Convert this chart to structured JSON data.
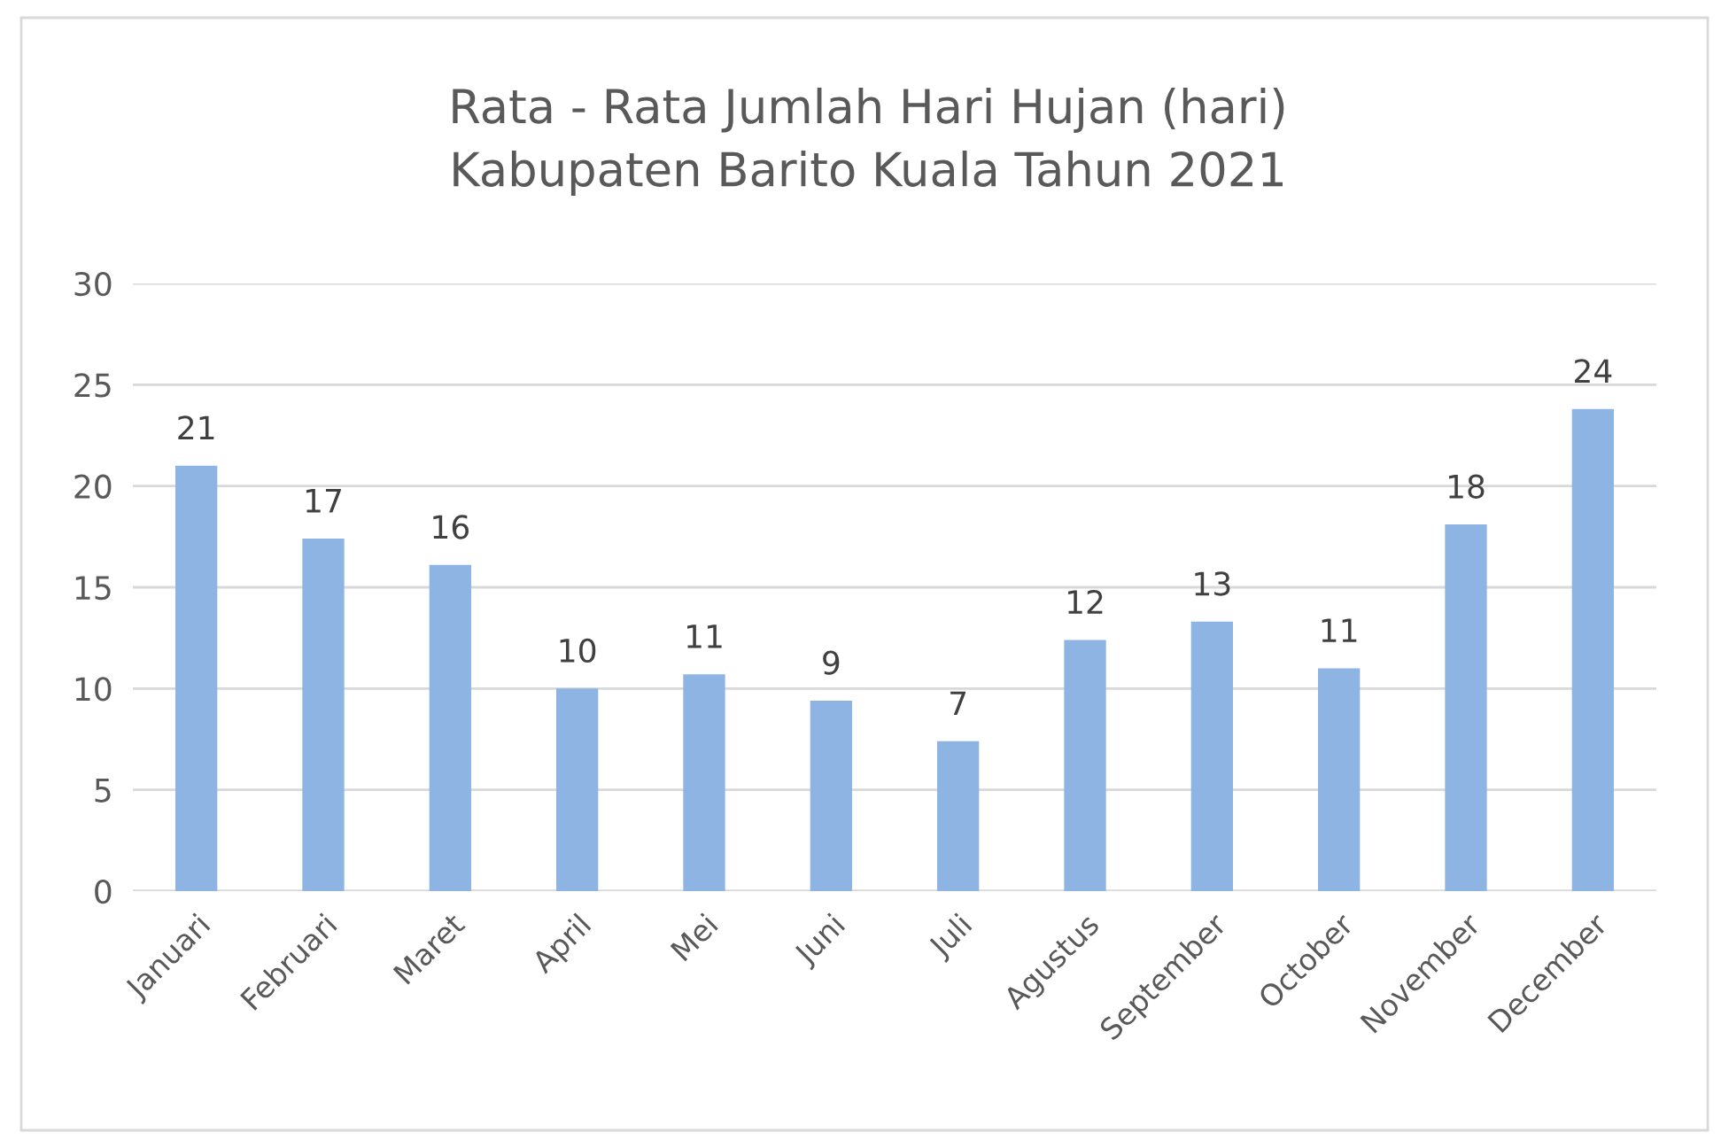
{
  "chart_data": {
    "type": "bar",
    "title": "Rata - Rata Jumlah Hari Hujan (hari)\nKabupaten Barito Kuala Tahun 2021",
    "categories": [
      "Januari",
      "Februari",
      "Maret",
      "April",
      "Mei",
      "Juni",
      "Juli",
      "Agustus",
      "September",
      "October",
      "November",
      "December"
    ],
    "values": [
      21.0,
      17.4,
      16.1,
      10.0,
      10.7,
      9.4,
      7.4,
      12.4,
      13.3,
      11.0,
      18.1,
      23.8
    ],
    "value_labels": [
      "21",
      "17",
      "16",
      "10",
      "11",
      "9",
      "7",
      "12",
      "13",
      "11",
      "18",
      "24"
    ],
    "color": "#8db4e2",
    "ylim": [
      0,
      30
    ],
    "yticks": [
      0,
      5,
      10,
      15,
      20,
      25,
      30
    ],
    "grid": "y",
    "legend": false
  }
}
